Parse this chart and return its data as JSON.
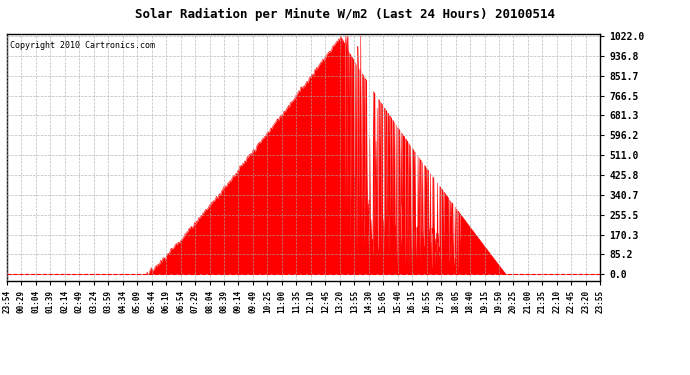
{
  "title": "Solar Radiation per Minute W/m2 (Last 24 Hours) 20100514",
  "copyright": "Copyright 2010 Cartronics.com",
  "ytick_labels": [
    0.0,
    85.2,
    170.3,
    255.5,
    340.7,
    425.8,
    511.0,
    596.2,
    681.3,
    766.5,
    851.7,
    936.8,
    1022.0
  ],
  "ymax": 1022.0,
  "ymin": 0.0,
  "fill_color": "#FF0000",
  "line_color": "#FF0000",
  "dashed_line_color": "#FF0000",
  "grid_color": "#AAAAAA",
  "background_color": "#FFFFFF",
  "border_color": "#000000",
  "x_labels": [
    "23:54",
    "00:29",
    "01:04",
    "01:39",
    "02:14",
    "02:49",
    "03:24",
    "03:59",
    "04:34",
    "05:09",
    "05:44",
    "06:19",
    "06:54",
    "07:29",
    "08:04",
    "08:39",
    "09:14",
    "09:49",
    "10:25",
    "11:00",
    "11:35",
    "12:10",
    "12:45",
    "13:20",
    "13:55",
    "14:30",
    "15:05",
    "15:40",
    "16:15",
    "16:55",
    "17:30",
    "18:05",
    "18:40",
    "19:15",
    "19:50",
    "20:25",
    "21:00",
    "21:35",
    "22:10",
    "22:45",
    "23:20",
    "23:55"
  ],
  "sunrise_idx": 340,
  "sunset_idx": 1210,
  "peak_idx": 810,
  "peak_value": 1022.0,
  "n_points": 1440
}
